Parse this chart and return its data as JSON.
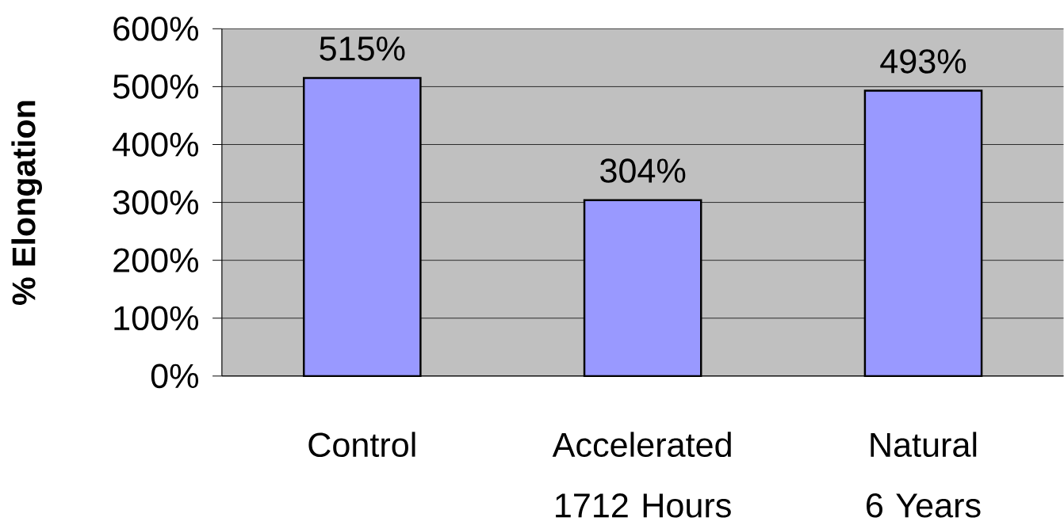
{
  "chart_data": {
    "type": "bar",
    "ylabel": "% Elongation",
    "categories": [
      "Control",
      "Accelerated 1712 Hours",
      "Natural 6 Years"
    ],
    "values": [
      515,
      304,
      493
    ],
    "value_labels": [
      "515%",
      "304%",
      "493%"
    ],
    "color": "#9999ff",
    "ylim": [
      0,
      600
    ],
    "yticks": [
      {
        "value": 0,
        "label": "0%"
      },
      {
        "value": 100,
        "label": "100%"
      },
      {
        "value": 200,
        "label": "200%"
      },
      {
        "value": 300,
        "label": "300%"
      },
      {
        "value": 400,
        "label": "400%"
      },
      {
        "value": 500,
        "label": "500%"
      },
      {
        "value": 600,
        "label": "600%"
      }
    ],
    "grid": "y"
  }
}
